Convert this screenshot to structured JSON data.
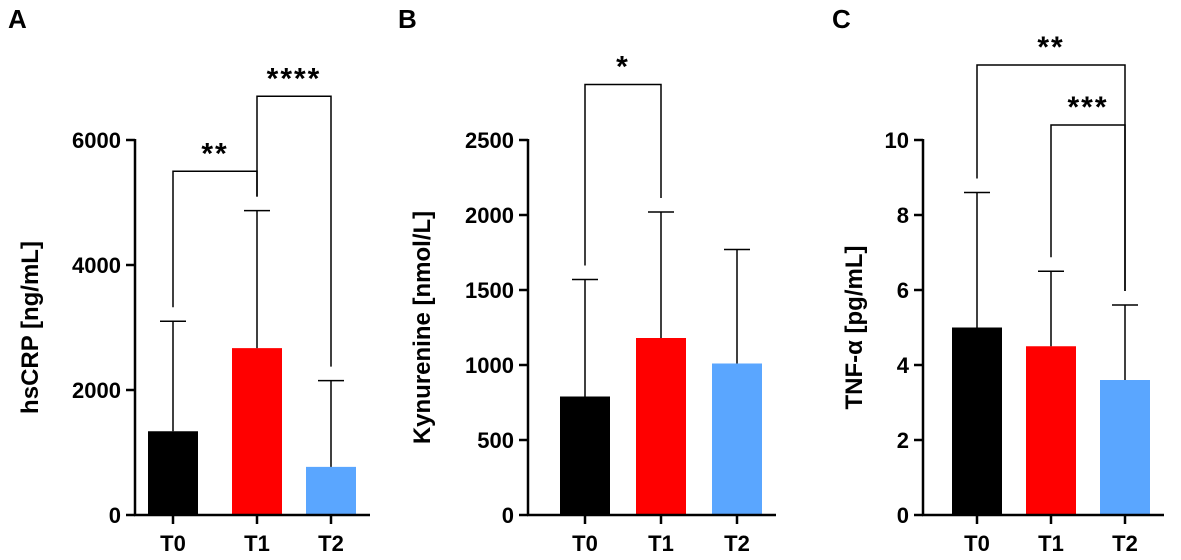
{
  "colors": {
    "T0": "#000000",
    "T1": "#ff0000",
    "T2": "#5aa6ff",
    "axis": "#000000"
  },
  "chart_data": [
    {
      "type": "bar",
      "panel": "A",
      "ylabel": "hsCRP [ng/mL]",
      "xlabel": "",
      "categories": [
        "T0",
        "T1",
        "T2"
      ],
      "values": [
        1340,
        2670,
        770
      ],
      "errors": [
        1760,
        2200,
        1380
      ],
      "ylim": [
        0,
        6000
      ],
      "yticks": [
        0,
        2000,
        4000,
        6000
      ],
      "ytick_labels": [
        "0",
        "2000",
        "4000",
        "6000"
      ],
      "significance": [
        {
          "from": 0,
          "to": 1,
          "label": "**",
          "y": 5500
        },
        {
          "from": 1,
          "to": 2,
          "label": "****",
          "y": 6700
        }
      ]
    },
    {
      "type": "bar",
      "panel": "B",
      "ylabel": "Kynurenine [nmol/L]",
      "xlabel": "",
      "categories": [
        "T0",
        "T1",
        "T2"
      ],
      "values": [
        790,
        1180,
        1010
      ],
      "errors": [
        780,
        840,
        760
      ],
      "ylim": [
        0,
        2500
      ],
      "yticks": [
        0,
        500,
        1000,
        1500,
        2000,
        2500
      ],
      "ytick_labels": [
        "0",
        "500",
        "1000",
        "1500",
        "2000",
        "2500"
      ],
      "significance": [
        {
          "from": 0,
          "to": 1,
          "label": "*",
          "y": 2870
        }
      ]
    },
    {
      "type": "bar",
      "panel": "C",
      "ylabel": "TNF-α [pg/mL]",
      "xlabel": "",
      "categories": [
        "T0",
        "T1",
        "T2"
      ],
      "values": [
        5.0,
        4.5,
        3.6
      ],
      "errors": [
        3.6,
        2.0,
        2.0
      ],
      "ylim": [
        0,
        10
      ],
      "yticks": [
        0,
        2,
        4,
        6,
        8,
        10
      ],
      "ytick_labels": [
        "0",
        "2",
        "4",
        "6",
        "8",
        "10"
      ],
      "significance": [
        {
          "from": 0,
          "to": 2,
          "label": "**",
          "y": 12.0
        },
        {
          "from": 1,
          "to": 2,
          "label": "***",
          "y": 10.4
        }
      ]
    }
  ]
}
